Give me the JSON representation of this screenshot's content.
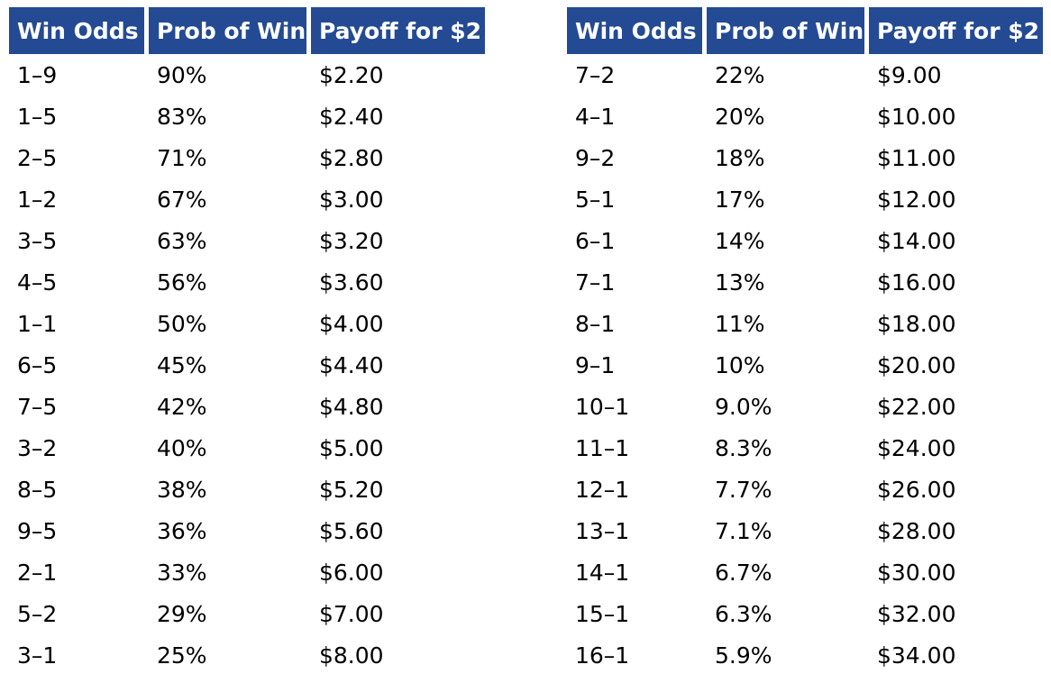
{
  "headers": {
    "odds": "Win Odds",
    "prob": "Prob of Win",
    "payoff": "Payoff for $2"
  },
  "left_rows": [
    {
      "odds": "1–9",
      "prob": "90%",
      "payoff": "$2.20"
    },
    {
      "odds": "1–5",
      "prob": "83%",
      "payoff": "$2.40"
    },
    {
      "odds": "2–5",
      "prob": "71%",
      "payoff": "$2.80"
    },
    {
      "odds": "1–2",
      "prob": "67%",
      "payoff": "$3.00"
    },
    {
      "odds": "3–5",
      "prob": "63%",
      "payoff": "$3.20"
    },
    {
      "odds": "4–5",
      "prob": "56%",
      "payoff": "$3.60"
    },
    {
      "odds": "1–1",
      "prob": "50%",
      "payoff": "$4.00"
    },
    {
      "odds": "6–5",
      "prob": "45%",
      "payoff": "$4.40"
    },
    {
      "odds": "7–5",
      "prob": "42%",
      "payoff": "$4.80"
    },
    {
      "odds": "3–2",
      "prob": "40%",
      "payoff": "$5.00"
    },
    {
      "odds": "8–5",
      "prob": "38%",
      "payoff": "$5.20"
    },
    {
      "odds": "9–5",
      "prob": "36%",
      "payoff": "$5.60"
    },
    {
      "odds": "2–1",
      "prob": "33%",
      "payoff": "$6.00"
    },
    {
      "odds": "5–2",
      "prob": "29%",
      "payoff": "$7.00"
    },
    {
      "odds": "3–1",
      "prob": "25%",
      "payoff": "$8.00"
    }
  ],
  "right_rows": [
    {
      "odds": "7–2",
      "prob": "22%",
      "payoff": "$9.00"
    },
    {
      "odds": "4–1",
      "prob": "20%",
      "payoff": "$10.00"
    },
    {
      "odds": "9–2",
      "prob": "18%",
      "payoff": "$11.00"
    },
    {
      "odds": "5–1",
      "prob": "17%",
      "payoff": "$12.00"
    },
    {
      "odds": "6–1",
      "prob": "14%",
      "payoff": "$14.00"
    },
    {
      "odds": "7–1",
      "prob": "13%",
      "payoff": "$16.00"
    },
    {
      "odds": "8–1",
      "prob": "11%",
      "payoff": "$18.00"
    },
    {
      "odds": "9–1",
      "prob": "10%",
      "payoff": "$20.00"
    },
    {
      "odds": "10–1",
      "prob": "9.0%",
      "payoff": "$22.00"
    },
    {
      "odds": "11–1",
      "prob": "8.3%",
      "payoff": "$24.00"
    },
    {
      "odds": "12–1",
      "prob": "7.7%",
      "payoff": "$26.00"
    },
    {
      "odds": "13–1",
      "prob": "7.1%",
      "payoff": "$28.00"
    },
    {
      "odds": "14–1",
      "prob": "6.7%",
      "payoff": "$30.00"
    },
    {
      "odds": "15–1",
      "prob": "6.3%",
      "payoff": "$32.00"
    },
    {
      "odds": "16–1",
      "prob": "5.9%",
      "payoff": "$34.00"
    }
  ],
  "colors": {
    "header_bg": "#244a94",
    "header_text": "#ffffff",
    "cell_text": "#000000"
  }
}
